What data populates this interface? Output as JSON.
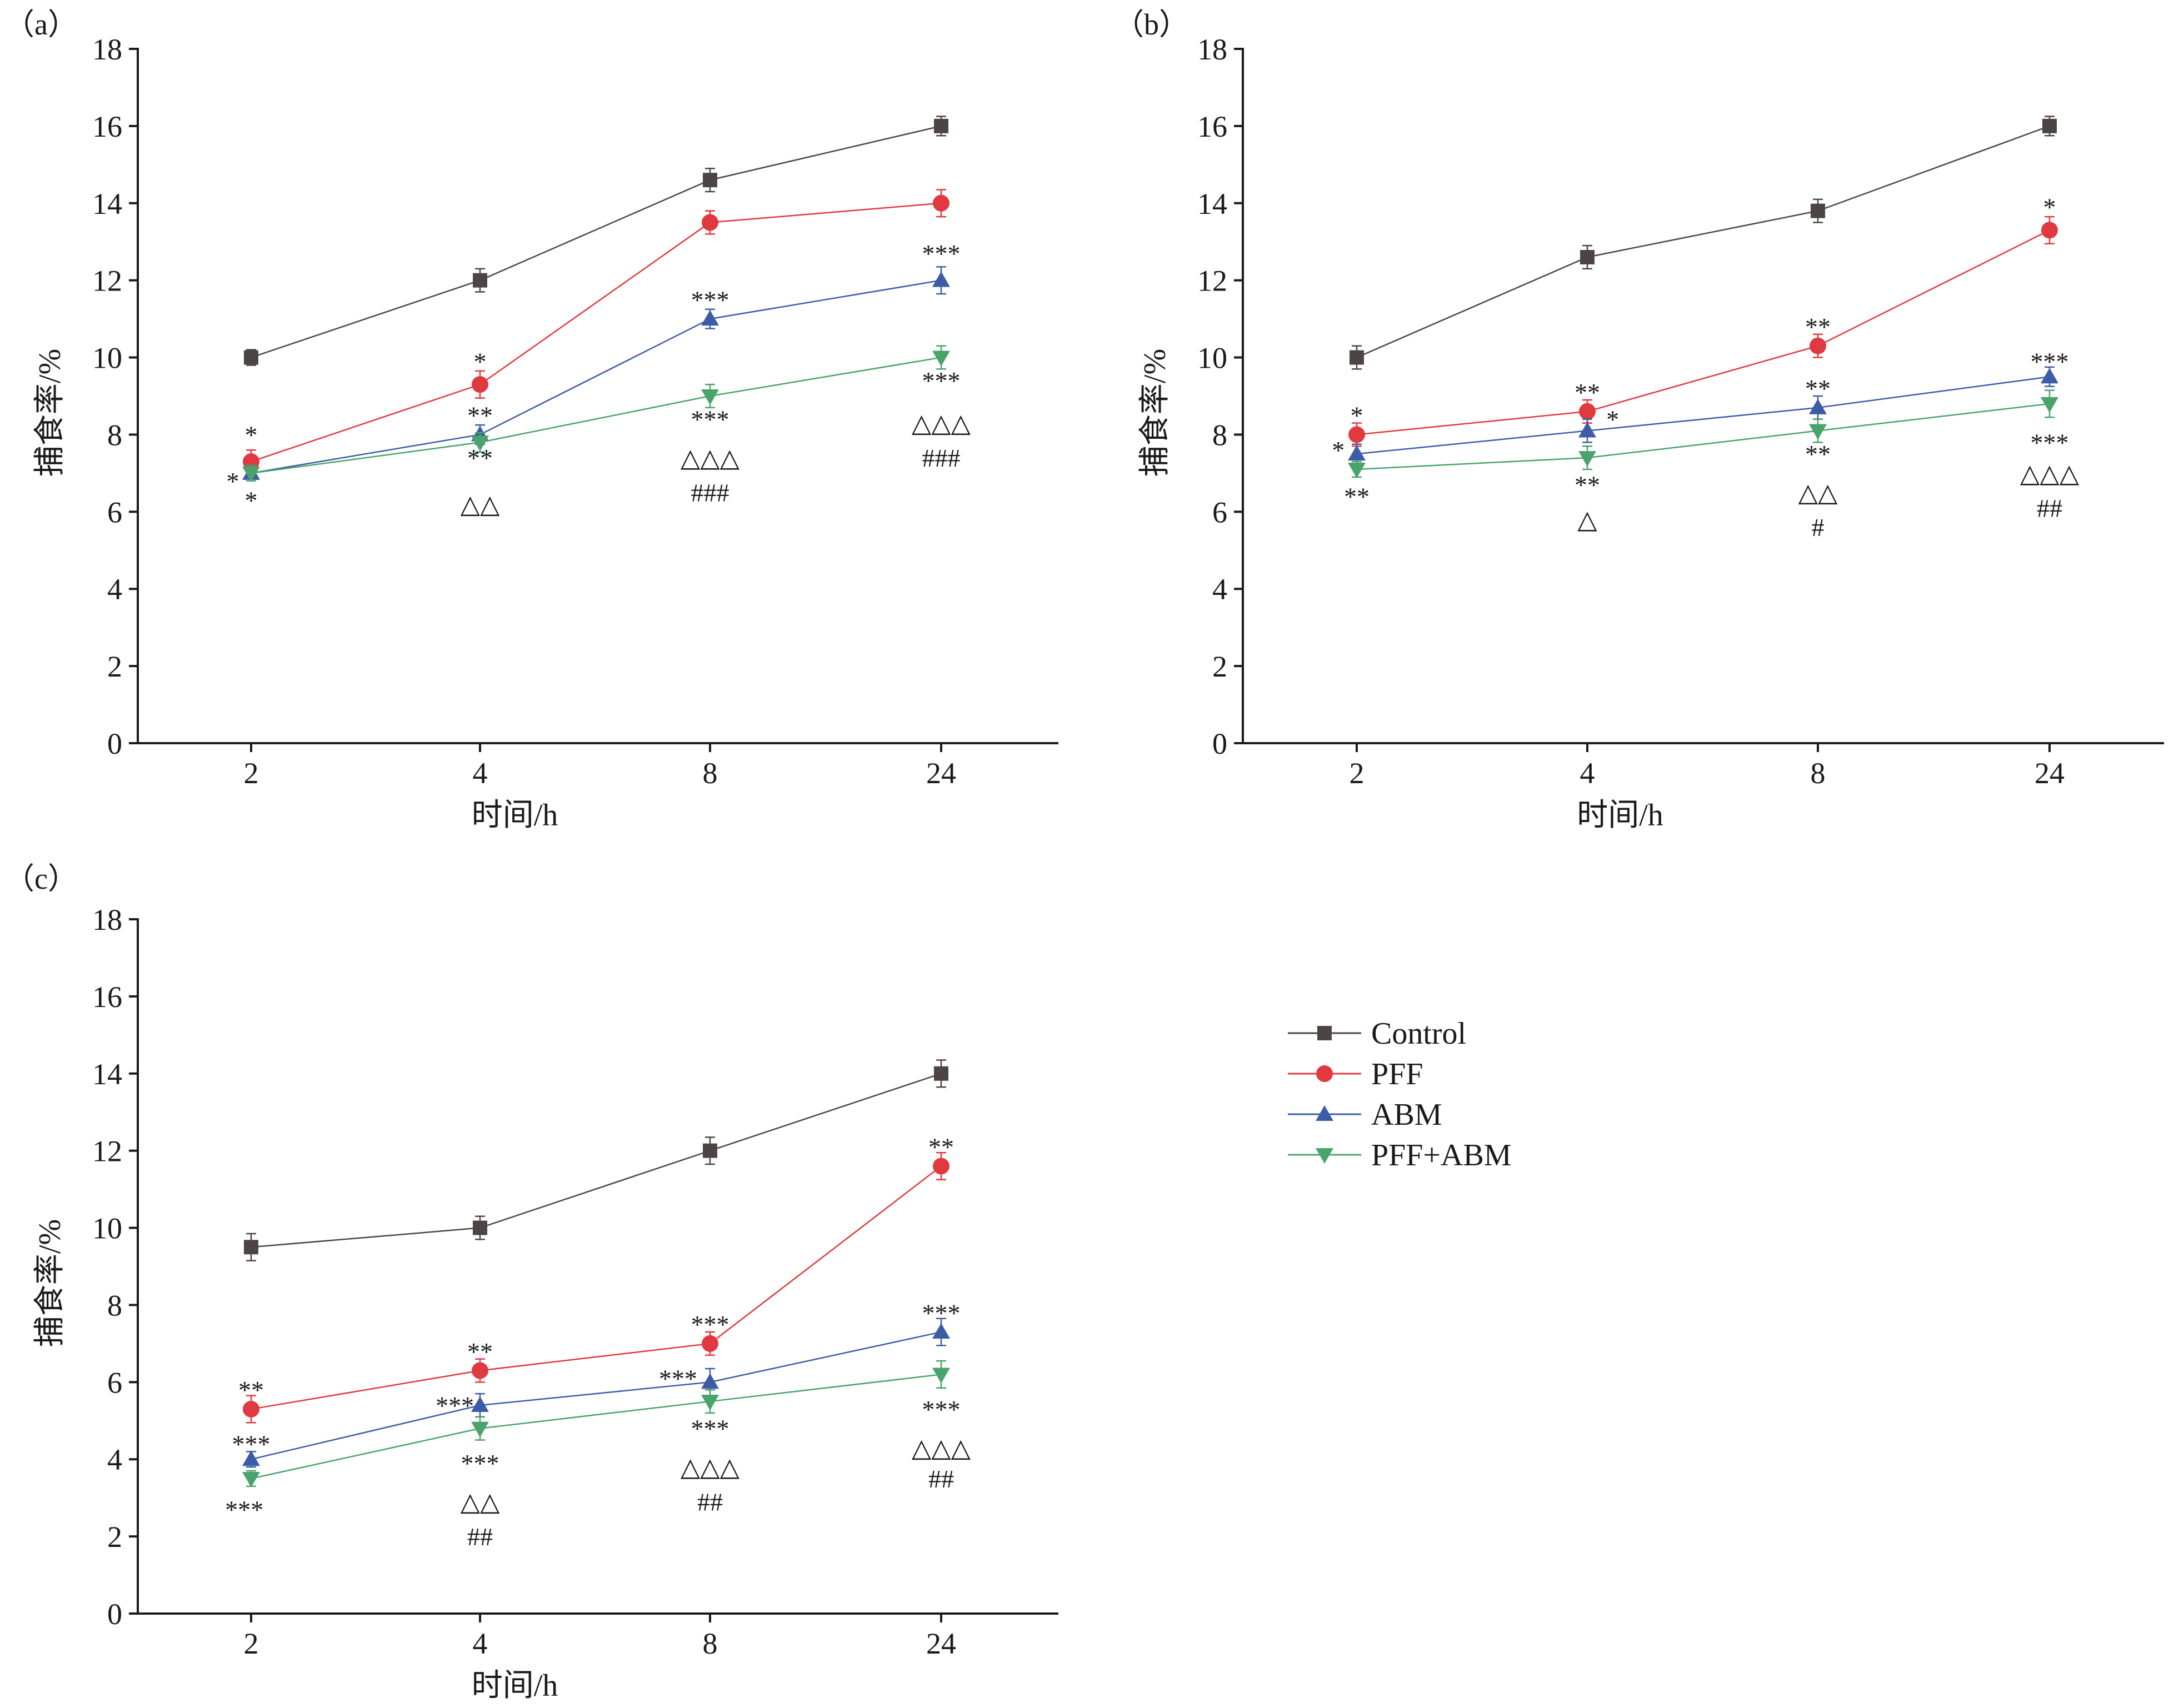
{
  "colors": {
    "Control": "#4d4544",
    "PFF": "#e0393f",
    "ABM": "#3c5da6",
    "PFF+ABM": "#4aa36b"
  },
  "legend": {
    "entries": [
      {
        "name": "Control",
        "marker": "square"
      },
      {
        "name": "PFF",
        "marker": "circle"
      },
      {
        "name": "ABM",
        "marker": "triangle-up"
      },
      {
        "name": "PFF+ABM",
        "marker": "triangle-down"
      }
    ]
  },
  "chart_data": [
    {
      "panel": "(a)",
      "type": "line",
      "xlabel": "时间/h",
      "ylabel": "捕食率/%",
      "categories": [
        "2",
        "4",
        "8",
        "24"
      ],
      "ylim": [
        0,
        18
      ],
      "yticks": [
        0,
        2,
        4,
        6,
        8,
        10,
        12,
        14,
        16,
        18
      ],
      "series": [
        {
          "name": "Control",
          "values": [
            10.0,
            12.0,
            14.6,
            16.0
          ],
          "err": [
            0.2,
            0.3,
            0.3,
            0.25
          ]
        },
        {
          "name": "PFF",
          "values": [
            7.3,
            9.3,
            13.5,
            14.0
          ],
          "err": [
            0.3,
            0.35,
            0.3,
            0.35
          ]
        },
        {
          "name": "ABM",
          "values": [
            7.0,
            8.0,
            11.0,
            12.0
          ],
          "err": [
            0.2,
            0.25,
            0.25,
            0.35
          ]
        },
        {
          "name": "PFF+ABM",
          "values": [
            7.0,
            7.8,
            9.0,
            10.0
          ],
          "err": [
            0.2,
            0.25,
            0.3,
            0.3
          ]
        }
      ],
      "annotations": [
        {
          "x": "2",
          "y": 8.0,
          "text": "*"
        },
        {
          "x": "2",
          "y": 6.8,
          "text": "*",
          "dx": -0.08
        },
        {
          "x": "2",
          "y": 6.3,
          "text": "*"
        },
        {
          "x": "4",
          "y": 9.9,
          "text": "*"
        },
        {
          "x": "4",
          "y": 8.5,
          "text": "**"
        },
        {
          "x": "4",
          "y": 7.4,
          "text": "**"
        },
        {
          "x": "4",
          "y": 6.2,
          "text": "△△"
        },
        {
          "x": "8",
          "y": 11.5,
          "text": "***"
        },
        {
          "x": "8",
          "y": 8.4,
          "text": "***"
        },
        {
          "x": "8",
          "y": 7.4,
          "text": "△△△"
        },
        {
          "x": "8",
          "y": 6.5,
          "text": "###"
        },
        {
          "x": "24",
          "y": 12.7,
          "text": "***"
        },
        {
          "x": "24",
          "y": 9.4,
          "text": "***"
        },
        {
          "x": "24",
          "y": 8.3,
          "text": "△△△"
        },
        {
          "x": "24",
          "y": 7.4,
          "text": "###"
        }
      ]
    },
    {
      "panel": "(b)",
      "type": "line",
      "xlabel": "时间/h",
      "ylabel": "捕食率/%",
      "categories": [
        "2",
        "4",
        "8",
        "24"
      ],
      "ylim": [
        0,
        18
      ],
      "yticks": [
        0,
        2,
        4,
        6,
        8,
        10,
        12,
        14,
        16,
        18
      ],
      "series": [
        {
          "name": "Control",
          "values": [
            10.0,
            12.6,
            13.8,
            16.0
          ],
          "err": [
            0.3,
            0.3,
            0.3,
            0.25
          ]
        },
        {
          "name": "PFF",
          "values": [
            8.0,
            8.6,
            10.3,
            13.3
          ],
          "err": [
            0.3,
            0.3,
            0.3,
            0.35
          ]
        },
        {
          "name": "ABM",
          "values": [
            7.5,
            8.1,
            8.7,
            9.5
          ],
          "err": [
            0.25,
            0.3,
            0.3,
            0.25
          ]
        },
        {
          "name": "PFF+ABM",
          "values": [
            7.1,
            7.4,
            8.1,
            8.8
          ],
          "err": [
            0.2,
            0.3,
            0.3,
            0.35
          ]
        }
      ],
      "annotations": [
        {
          "x": "2",
          "y": 8.5,
          "text": "*"
        },
        {
          "x": "2",
          "y": 7.6,
          "text": "*",
          "dx": -0.08
        },
        {
          "x": "2",
          "y": 6.4,
          "text": "**"
        },
        {
          "x": "4",
          "y": 9.1,
          "text": "**"
        },
        {
          "x": "4",
          "y": 8.4,
          "text": "*",
          "dx": 0.11
        },
        {
          "x": "4",
          "y": 6.7,
          "text": "**"
        },
        {
          "x": "4",
          "y": 5.8,
          "text": "△"
        },
        {
          "x": "8",
          "y": 10.8,
          "text": "**"
        },
        {
          "x": "8",
          "y": 9.2,
          "text": "**"
        },
        {
          "x": "8",
          "y": 7.5,
          "text": "**"
        },
        {
          "x": "8",
          "y": 6.5,
          "text": "△△"
        },
        {
          "x": "8",
          "y": 5.6,
          "text": "#"
        },
        {
          "x": "24",
          "y": 13.9,
          "text": "*"
        },
        {
          "x": "24",
          "y": 9.9,
          "text": "***"
        },
        {
          "x": "24",
          "y": 7.8,
          "text": "***"
        },
        {
          "x": "24",
          "y": 7.0,
          "text": "△△△"
        },
        {
          "x": "24",
          "y": 6.1,
          "text": "##"
        }
      ]
    },
    {
      "panel": "(c)",
      "type": "line",
      "xlabel": "时间/h",
      "ylabel": "捕食率/%",
      "categories": [
        "2",
        "4",
        "8",
        "24"
      ],
      "ylim": [
        0,
        18
      ],
      "yticks": [
        0,
        2,
        4,
        6,
        8,
        10,
        12,
        14,
        16,
        18
      ],
      "series": [
        {
          "name": "Control",
          "values": [
            9.5,
            10.0,
            12.0,
            14.0
          ],
          "err": [
            0.35,
            0.3,
            0.35,
            0.35
          ]
        },
        {
          "name": "PFF",
          "values": [
            5.3,
            6.3,
            7.0,
            11.6
          ],
          "err": [
            0.35,
            0.3,
            0.3,
            0.35
          ]
        },
        {
          "name": "ABM",
          "values": [
            4.0,
            5.4,
            6.0,
            7.3
          ],
          "err": [
            0.2,
            0.3,
            0.35,
            0.35
          ]
        },
        {
          "name": "PFF+ABM",
          "values": [
            3.5,
            4.8,
            5.5,
            6.2
          ],
          "err": [
            0.2,
            0.3,
            0.3,
            0.35
          ]
        }
      ],
      "annotations": [
        {
          "x": "2",
          "y": 5.8,
          "text": "**"
        },
        {
          "x": "2",
          "y": 4.4,
          "text": "***"
        },
        {
          "x": "2",
          "y": 2.7,
          "text": "***",
          "dx": -0.03
        },
        {
          "x": "4",
          "y": 6.8,
          "text": "**"
        },
        {
          "x": "4",
          "y": 5.4,
          "text": "***",
          "dx": -0.11
        },
        {
          "x": "4",
          "y": 3.9,
          "text": "***"
        },
        {
          "x": "4",
          "y": 2.9,
          "text": "△△"
        },
        {
          "x": "4",
          "y": 2.0,
          "text": "##"
        },
        {
          "x": "8",
          "y": 7.5,
          "text": "***"
        },
        {
          "x": "8",
          "y": 6.1,
          "text": "***",
          "dx": -0.14
        },
        {
          "x": "8",
          "y": 4.8,
          "text": "***"
        },
        {
          "x": "8",
          "y": 3.8,
          "text": "△△△"
        },
        {
          "x": "8",
          "y": 2.9,
          "text": "##"
        },
        {
          "x": "24",
          "y": 12.1,
          "text": "**"
        },
        {
          "x": "24",
          "y": 7.8,
          "text": "***"
        },
        {
          "x": "24",
          "y": 5.3,
          "text": "***"
        },
        {
          "x": "24",
          "y": 4.3,
          "text": "△△△"
        },
        {
          "x": "24",
          "y": 3.5,
          "text": "##"
        }
      ]
    }
  ]
}
